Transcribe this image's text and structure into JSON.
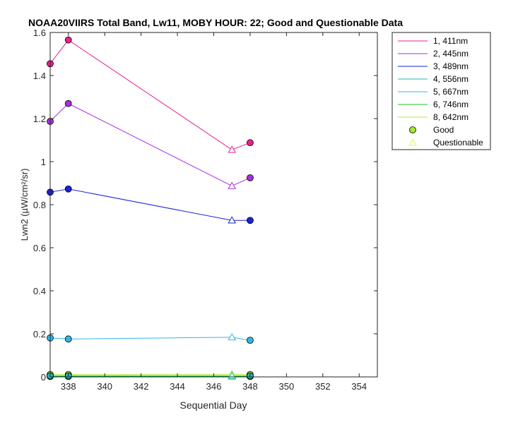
{
  "chart_data": {
    "type": "line",
    "title": "NOAA20VIIRS Total Band, Lw11, MOBY HOUR: 22;  Good and Questionable Data",
    "xlabel": "Sequential Day",
    "ylabel": "Lwn2 (µW/cm²/sr)",
    "xlim": [
      337,
      355
    ],
    "ylim": [
      0,
      1.6
    ],
    "xticks": [
      338,
      340,
      342,
      344,
      346,
      348,
      350,
      352,
      354
    ],
    "yticks": [
      0,
      0.2,
      0.4,
      0.6,
      0.8,
      1,
      1.2,
      1.4,
      1.6
    ],
    "xtick_labels": [
      "338",
      "340",
      "342",
      "344",
      "346",
      "348",
      "350",
      "352",
      "354"
    ],
    "ytick_labels": [
      "0",
      "0.2",
      "0.4",
      "0.6",
      "0.8",
      "1",
      "1.2",
      "1.4",
      "1.6"
    ],
    "grid": false,
    "legend_position": "outside-top-right",
    "x": [
      337,
      338,
      347,
      348
    ],
    "quality": [
      "good",
      "good",
      "questionable",
      "good"
    ],
    "series": [
      {
        "name": "1, 411nm",
        "color": "#e8208f",
        "values": [
          1.455,
          1.565,
          1.055,
          1.088
        ]
      },
      {
        "name": "2, 445nm",
        "color": "#a82ee0",
        "values": [
          1.187,
          1.27,
          0.887,
          0.925
        ]
      },
      {
        "name": "3, 489nm",
        "color": "#1a22d8",
        "values": [
          0.858,
          0.873,
          0.727,
          0.727
        ]
      },
      {
        "name": "4, 556nm",
        "color": "#18b8b0",
        "values": [
          0.005,
          0.005,
          0.005,
          0.005
        ]
      },
      {
        "name": "5, 667nm",
        "color": "#30b8e8",
        "values": [
          0.181,
          0.176,
          0.184,
          0.17
        ]
      },
      {
        "name": "6, 746nm",
        "color": "#20c020",
        "values": [
          0.002,
          0.002,
          0.002,
          0.002
        ]
      },
      {
        "name": "8, 642nm",
        "color": "#a8e830",
        "values": [
          0.011,
          0.011,
          0.012,
          0.011
        ]
      }
    ],
    "marker_legend": [
      {
        "name": "Good",
        "symbol": "circle",
        "color": "#a8e830"
      },
      {
        "name": "Questionable",
        "symbol": "triangle",
        "color": "#d8ff50"
      }
    ]
  }
}
